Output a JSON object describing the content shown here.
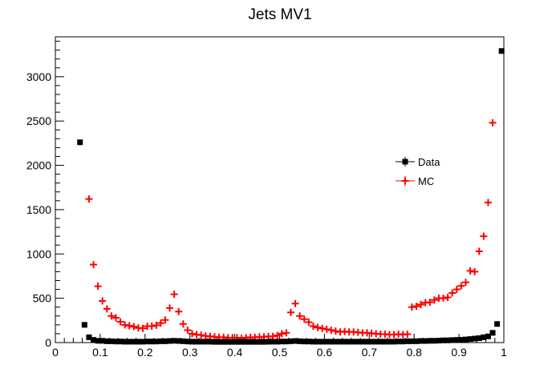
{
  "chart_data": {
    "type": "scatter",
    "title": "Jets MV1",
    "xlim": [
      0,
      1
    ],
    "ylim": [
      0,
      3450
    ],
    "x_ticks": [
      "0",
      "0.1",
      "0.2",
      "0.3",
      "0.4",
      "0.5",
      "0.6",
      "0.7",
      "0.8",
      "0.9",
      "1"
    ],
    "y_ticks": [
      "0",
      "500",
      "1000",
      "1500",
      "2000",
      "2500",
      "3000"
    ],
    "grid": false,
    "legend_position": "right-center",
    "series": [
      {
        "name": "Data",
        "color": "#000000",
        "marker": "square",
        "points": [
          [
            0.055,
            2260
          ],
          [
            0.065,
            200
          ],
          [
            0.075,
            60
          ],
          [
            0.085,
            30
          ],
          [
            0.095,
            20
          ],
          [
            0.105,
            20
          ],
          [
            0.115,
            15
          ],
          [
            0.125,
            15
          ],
          [
            0.135,
            12
          ],
          [
            0.145,
            12
          ],
          [
            0.155,
            10
          ],
          [
            0.165,
            10
          ],
          [
            0.175,
            10
          ],
          [
            0.185,
            10
          ],
          [
            0.195,
            10
          ],
          [
            0.205,
            12
          ],
          [
            0.215,
            12
          ],
          [
            0.225,
            12
          ],
          [
            0.235,
            15
          ],
          [
            0.245,
            15
          ],
          [
            0.255,
            18
          ],
          [
            0.265,
            20
          ],
          [
            0.275,
            18
          ],
          [
            0.285,
            15
          ],
          [
            0.295,
            12
          ],
          [
            0.305,
            10
          ],
          [
            0.315,
            10
          ],
          [
            0.325,
            10
          ],
          [
            0.335,
            10
          ],
          [
            0.345,
            10
          ],
          [
            0.355,
            8
          ],
          [
            0.365,
            8
          ],
          [
            0.375,
            8
          ],
          [
            0.385,
            8
          ],
          [
            0.395,
            8
          ],
          [
            0.405,
            8
          ],
          [
            0.415,
            8
          ],
          [
            0.425,
            8
          ],
          [
            0.435,
            8
          ],
          [
            0.445,
            8
          ],
          [
            0.455,
            8
          ],
          [
            0.465,
            8
          ],
          [
            0.475,
            10
          ],
          [
            0.485,
            10
          ],
          [
            0.495,
            10
          ],
          [
            0.505,
            12
          ],
          [
            0.515,
            12
          ],
          [
            0.525,
            15
          ],
          [
            0.535,
            18
          ],
          [
            0.545,
            15
          ],
          [
            0.555,
            12
          ],
          [
            0.565,
            12
          ],
          [
            0.575,
            10
          ],
          [
            0.585,
            10
          ],
          [
            0.595,
            10
          ],
          [
            0.605,
            10
          ],
          [
            0.615,
            10
          ],
          [
            0.625,
            10
          ],
          [
            0.635,
            10
          ],
          [
            0.645,
            10
          ],
          [
            0.655,
            10
          ],
          [
            0.665,
            10
          ],
          [
            0.675,
            10
          ],
          [
            0.685,
            10
          ],
          [
            0.695,
            10
          ],
          [
            0.705,
            10
          ],
          [
            0.715,
            10
          ],
          [
            0.725,
            10
          ],
          [
            0.735,
            10
          ],
          [
            0.745,
            10
          ],
          [
            0.755,
            10
          ],
          [
            0.765,
            12
          ],
          [
            0.775,
            12
          ],
          [
            0.785,
            15
          ],
          [
            0.795,
            15
          ],
          [
            0.805,
            15
          ],
          [
            0.815,
            18
          ],
          [
            0.825,
            18
          ],
          [
            0.835,
            20
          ],
          [
            0.845,
            20
          ],
          [
            0.855,
            22
          ],
          [
            0.865,
            25
          ],
          [
            0.875,
            25
          ],
          [
            0.885,
            28
          ],
          [
            0.895,
            30
          ],
          [
            0.905,
            32
          ],
          [
            0.915,
            35
          ],
          [
            0.925,
            40
          ],
          [
            0.935,
            45
          ],
          [
            0.945,
            50
          ],
          [
            0.955,
            60
          ],
          [
            0.965,
            70
          ],
          [
            0.975,
            110
          ],
          [
            0.985,
            210
          ],
          [
            0.995,
            3290
          ]
        ]
      },
      {
        "name": "MC",
        "color": "#ff0000",
        "marker": "cross",
        "points": [
          [
            0.075,
            1620
          ],
          [
            0.085,
            880
          ],
          [
            0.095,
            635
          ],
          [
            0.105,
            470
          ],
          [
            0.115,
            380
          ],
          [
            0.125,
            300
          ],
          [
            0.135,
            280
          ],
          [
            0.145,
            235
          ],
          [
            0.155,
            200
          ],
          [
            0.165,
            190
          ],
          [
            0.175,
            180
          ],
          [
            0.185,
            165
          ],
          [
            0.195,
            160
          ],
          [
            0.205,
            185
          ],
          [
            0.215,
            185
          ],
          [
            0.225,
            195
          ],
          [
            0.235,
            220
          ],
          [
            0.245,
            255
          ],
          [
            0.255,
            390
          ],
          [
            0.265,
            545
          ],
          [
            0.275,
            350
          ],
          [
            0.285,
            210
          ],
          [
            0.295,
            140
          ],
          [
            0.305,
            100
          ],
          [
            0.315,
            90
          ],
          [
            0.325,
            85
          ],
          [
            0.335,
            75
          ],
          [
            0.345,
            70
          ],
          [
            0.355,
            65
          ],
          [
            0.365,
            60
          ],
          [
            0.375,
            60
          ],
          [
            0.385,
            55
          ],
          [
            0.395,
            55
          ],
          [
            0.405,
            55
          ],
          [
            0.415,
            50
          ],
          [
            0.425,
            55
          ],
          [
            0.435,
            60
          ],
          [
            0.445,
            60
          ],
          [
            0.455,
            65
          ],
          [
            0.465,
            65
          ],
          [
            0.475,
            70
          ],
          [
            0.485,
            70
          ],
          [
            0.495,
            80
          ],
          [
            0.505,
            100
          ],
          [
            0.515,
            110
          ],
          [
            0.525,
            340
          ],
          [
            0.535,
            440
          ],
          [
            0.545,
            300
          ],
          [
            0.555,
            265
          ],
          [
            0.565,
            230
          ],
          [
            0.575,
            185
          ],
          [
            0.585,
            170
          ],
          [
            0.595,
            160
          ],
          [
            0.605,
            150
          ],
          [
            0.615,
            140
          ],
          [
            0.625,
            130
          ],
          [
            0.635,
            120
          ],
          [
            0.645,
            125
          ],
          [
            0.655,
            120
          ],
          [
            0.665,
            120
          ],
          [
            0.675,
            115
          ],
          [
            0.685,
            110
          ],
          [
            0.695,
            110
          ],
          [
            0.705,
            105
          ],
          [
            0.715,
            100
          ],
          [
            0.725,
            95
          ],
          [
            0.735,
            95
          ],
          [
            0.745,
            90
          ],
          [
            0.755,
            90
          ],
          [
            0.765,
            95
          ],
          [
            0.775,
            90
          ],
          [
            0.785,
            95
          ],
          [
            0.795,
            400
          ],
          [
            0.805,
            410
          ],
          [
            0.815,
            430
          ],
          [
            0.825,
            450
          ],
          [
            0.835,
            455
          ],
          [
            0.845,
            480
          ],
          [
            0.855,
            500
          ],
          [
            0.865,
            500
          ],
          [
            0.875,
            510
          ],
          [
            0.885,
            560
          ],
          [
            0.895,
            600
          ],
          [
            0.905,
            640
          ],
          [
            0.915,
            680
          ],
          [
            0.925,
            810
          ],
          [
            0.935,
            800
          ],
          [
            0.945,
            1030
          ],
          [
            0.955,
            1200
          ],
          [
            0.965,
            1580
          ],
          [
            0.975,
            2480
          ]
        ]
      }
    ]
  }
}
